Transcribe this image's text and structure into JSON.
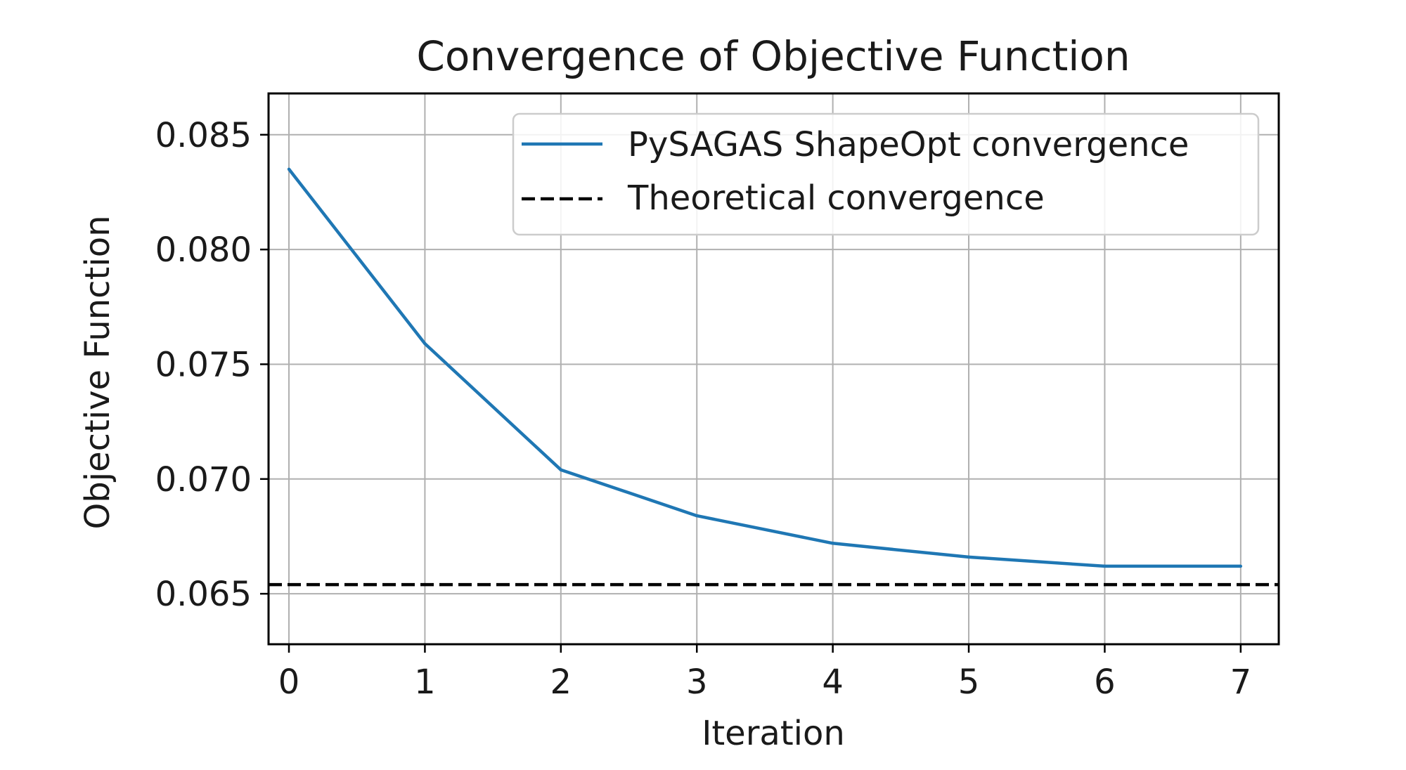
{
  "chart_data": {
    "type": "line",
    "title": "Convergence of Objective Function",
    "xlabel": "Iteration",
    "ylabel": "Objective Function",
    "xlim": [
      -0.15,
      7.28
    ],
    "ylim": [
      0.0628,
      0.0868
    ],
    "x_ticks": [
      0,
      1,
      2,
      3,
      4,
      5,
      6,
      7
    ],
    "x_tick_labels": [
      "0",
      "1",
      "2",
      "3",
      "4",
      "5",
      "6",
      "7"
    ],
    "y_ticks": [
      0.065,
      0.07,
      0.075,
      0.08,
      0.085
    ],
    "y_tick_labels": [
      "0.065",
      "0.070",
      "0.075",
      "0.080",
      "0.085"
    ],
    "grid": true,
    "legend_position": "upper-right",
    "series": [
      {
        "name": "PySAGAS ShapeOpt convergence",
        "style": "solid",
        "color": "#1f77b4",
        "x": [
          0,
          1,
          2,
          3,
          4,
          5,
          6,
          7
        ],
        "values": [
          0.0835,
          0.0759,
          0.0704,
          0.0684,
          0.0672,
          0.0666,
          0.0662,
          0.0662
        ]
      },
      {
        "name": "Theoretical convergence",
        "style": "dashed",
        "color": "#000000",
        "hline": 0.0654
      }
    ]
  }
}
